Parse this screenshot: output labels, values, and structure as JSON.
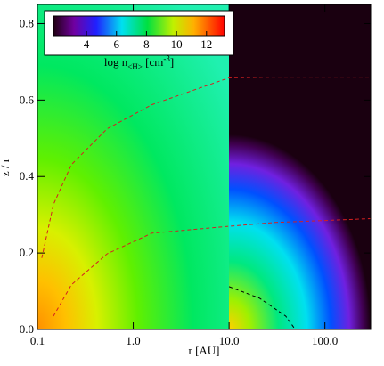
{
  "chart_data": {
    "type": "density-map",
    "xlabel": "r [AU]",
    "ylabel": "z / r",
    "xscale": "log",
    "xlim": [
      0.1,
      300
    ],
    "xticks": [
      {
        "value": 0.1,
        "label": "0.1"
      },
      {
        "value": 1,
        "label": "1.0"
      },
      {
        "value": 10,
        "label": "10.0"
      },
      {
        "value": 100,
        "label": "100.0"
      }
    ],
    "ylim": [
      0,
      0.85
    ],
    "yticks": [
      {
        "value": 0,
        "label": "0.0"
      },
      0.2,
      0.4,
      0.6,
      0.8
    ],
    "colorbar": {
      "label": {
        "main": "log n",
        "sub": "<H>",
        "unit": " [cm",
        "sup": "-3",
        "end": "]"
      },
      "clim": [
        1.8,
        13.2
      ],
      "ticks": [
        4,
        6,
        8,
        10,
        12
      ]
    },
    "series": [
      {
        "color": "#d42020",
        "x": [
          0.111,
          0.147,
          0.226,
          0.535,
          1.57,
          10,
          30,
          100,
          300
        ],
        "values": [
          0.187,
          0.327,
          0.431,
          0.525,
          0.588,
          0.658,
          0.66,
          0.66,
          0.66
        ]
      },
      {
        "color": "#d42020",
        "x": [
          0.147,
          0.226,
          0.535,
          1.57,
          10,
          30,
          100,
          300
        ],
        "values": [
          0.035,
          0.117,
          0.198,
          0.252,
          0.27,
          0.28,
          0.285,
          0.29
        ]
      },
      {
        "color": "#000000",
        "x": [
          10,
          20.8,
          39,
          49
        ],
        "values": [
          0.112,
          0.082,
          0.035,
          0
        ]
      }
    ]
  }
}
